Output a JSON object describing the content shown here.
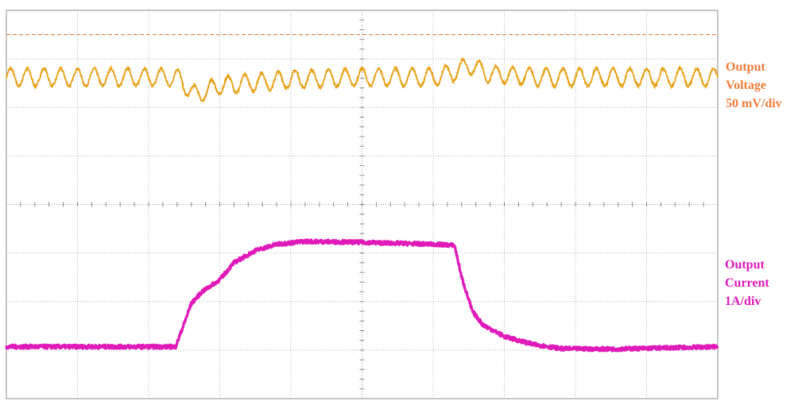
{
  "chart_data": {
    "type": "line",
    "grid": true,
    "grid_divisions": {
      "x": 10,
      "y": 8
    },
    "x_axis": {
      "unit": "div",
      "range": [
        0,
        10
      ]
    },
    "y_axis": {
      "unit": "div",
      "range": [
        0,
        8
      ]
    },
    "series": [
      {
        "name": "Output Voltage",
        "color": "#e8a21b",
        "scale": "50 mV/div",
        "ripple_amplitude_div": 0.18,
        "ripple_cycles_per_div": 4.25,
        "x": [
          0,
          2.4,
          2.65,
          3.0,
          4.0,
          5.0,
          6.0,
          6.3,
          6.5,
          6.8,
          7.5,
          10.0
        ],
        "y": [
          6.62,
          6.62,
          6.25,
          6.45,
          6.58,
          6.62,
          6.62,
          6.72,
          6.88,
          6.68,
          6.62,
          6.62
        ]
      },
      {
        "name": "Output Current",
        "color": "#e01ab8",
        "scale": "1A/div",
        "x": [
          0,
          2.38,
          2.5,
          2.6,
          2.75,
          3.0,
          3.2,
          3.5,
          3.8,
          4.2,
          5.0,
          6.0,
          6.3,
          6.4,
          6.55,
          6.7,
          7.0,
          7.4,
          7.8,
          8.5,
          10.0
        ],
        "y": [
          1.07,
          1.07,
          1.55,
          1.96,
          2.2,
          2.45,
          2.8,
          3.05,
          3.18,
          3.24,
          3.22,
          3.18,
          3.16,
          2.5,
          1.8,
          1.52,
          1.28,
          1.12,
          1.03,
          1.02,
          1.07
        ]
      }
    ],
    "reference_line": {
      "color": "#e07030",
      "y": 7.5,
      "style": "dashed"
    }
  },
  "labels": {
    "voltage": {
      "line1": "Output",
      "line2": "Voltage",
      "line3": "50 mV/div"
    },
    "current": {
      "line1": "Output",
      "line2": "Current",
      "line3": "1A/div"
    }
  }
}
